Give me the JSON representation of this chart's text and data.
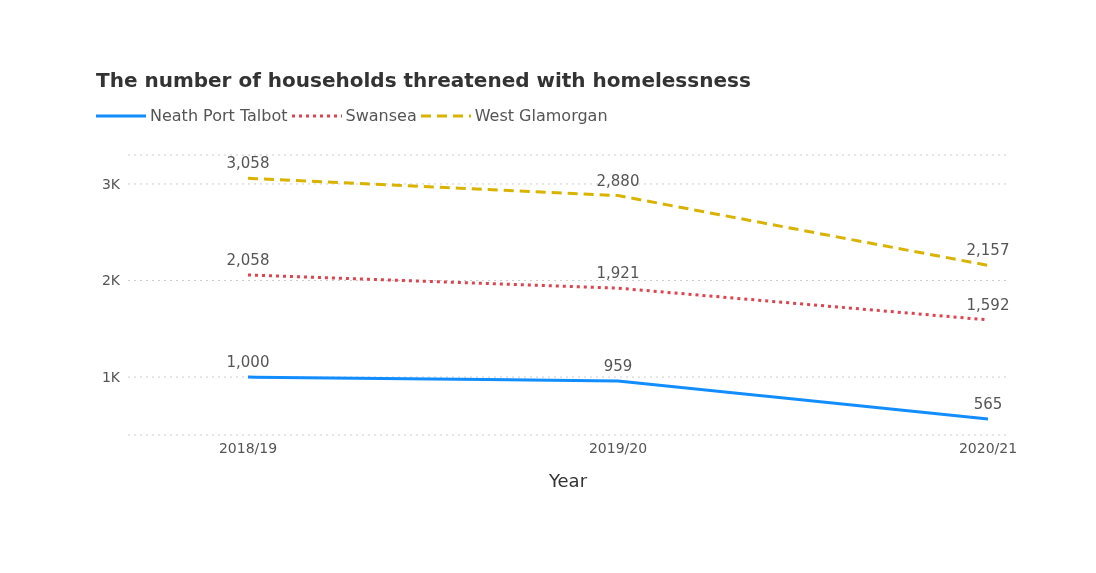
{
  "chart_data": {
    "type": "line",
    "title": "The number of households threatened with homelessness",
    "xlabel": "Year",
    "categories": [
      "2018/19",
      "2019/20",
      "2020/21"
    ],
    "series": [
      {
        "name": "Neath Port Talbot",
        "color": "#118dff",
        "values": [
          1000,
          959,
          565
        ],
        "value_labels": [
          "1,000",
          "959",
          "565"
        ],
        "line_style": "solid"
      },
      {
        "name": "Swansea",
        "color": "#e0434d",
        "values": [
          2058,
          1921,
          1592
        ],
        "value_labels": [
          "2,058",
          "1,921",
          "1,592"
        ],
        "line_style": "dotted"
      },
      {
        "name": "West Glamorgan",
        "color": "#d9b300",
        "values": [
          3058,
          2880,
          2157
        ],
        "value_labels": [
          "3,058",
          "2,880",
          "2,157"
        ],
        "line_style": "dashed"
      }
    ],
    "ylim": [
      400,
      3300
    ],
    "yticks": [
      {
        "value": 1000,
        "label": "1K"
      },
      {
        "value": 2000,
        "label": "2K"
      },
      {
        "value": 3000,
        "label": "3K"
      }
    ],
    "grid": "y",
    "legend": "top left",
    "marker": "none"
  }
}
